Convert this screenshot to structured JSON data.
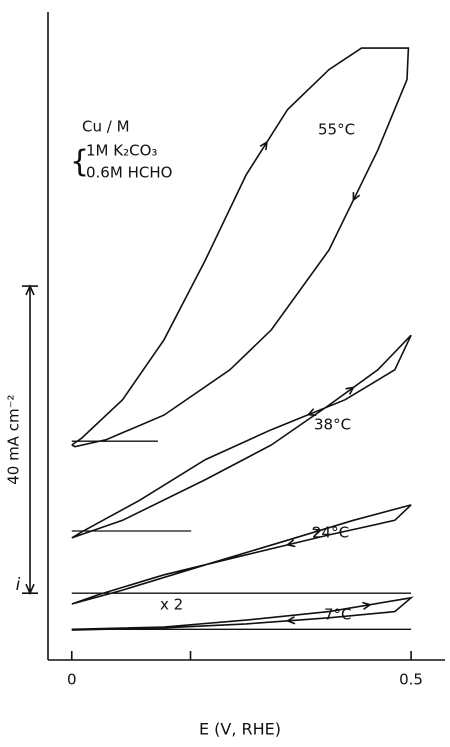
{
  "chart_data": {
    "type": "line",
    "xlabel": "E (V, RHE)",
    "ylabel": "i",
    "annotations": [
      "Cu / M",
      "1M K₂CO₃",
      "0.6M HCHO",
      "x 2"
    ],
    "scale_bar": {
      "value": 40,
      "label": "40 mA cm⁻²",
      "start": 8.7
    },
    "xlim": [
      -0.035,
      0.55
    ],
    "xticks": [
      0,
      {
        "value": 0.175,
        "label": null
      },
      {
        "value": 0.5,
        "label": "0.5"
      }
    ],
    "ylim": [
      0,
      84.4
    ],
    "series": [
      {
        "name": "55°C",
        "color": "#111111",
        "baseline": 28.5,
        "baseline_end": 0.127,
        "x": [
          0,
          0.0146,
          0.075,
          0.136,
          0.197,
          0.257,
          0.318,
          0.379,
          0.427,
          0.496,
          0.494,
          0.451,
          0.379,
          0.294,
          0.233,
          0.136,
          0.051,
          0.005,
          0
        ],
        "y": [
          28.0,
          28.9,
          33.9,
          41.7,
          52.1,
          63.2,
          71.7,
          76.9,
          79.7,
          79.7,
          75.6,
          66.4,
          53.4,
          43.0,
          37.8,
          31.9,
          28.7,
          27.8,
          28.0
        ]
      },
      {
        "name": "38°C",
        "color": "#111111",
        "baseline": 16.8,
        "baseline_end": 0.176,
        "x": [
          0,
          0.075,
          0.197,
          0.294,
          0.379,
          0.451,
          0.5,
          0.476,
          0.403,
          0.294,
          0.197,
          0.1,
          0.015,
          0
        ],
        "y": [
          15.9,
          18.2,
          23.5,
          28.0,
          33.2,
          37.8,
          42.3,
          37.8,
          33.9,
          30.0,
          26.1,
          20.8,
          16.7,
          15.9
        ]
      },
      {
        "name": "24°C",
        "color": "#111111",
        "baseline": 8.7,
        "baseline_end": 0.5,
        "x": [
          0,
          0.075,
          0.197,
          0.318,
          0.415,
          0.5,
          0.476,
          0.379,
          0.257,
          0.136,
          0.039,
          0
        ],
        "y": [
          7.3,
          9.1,
          12.4,
          15.6,
          18.2,
          20.2,
          18.2,
          16.3,
          13.7,
          11.1,
          8.5,
          7.3
        ]
      },
      {
        "name": "7°C",
        "color": "#111111",
        "baseline": 4.0,
        "baseline_end": 0.5,
        "x": [
          0,
          0.136,
          0.257,
          0.379,
          0.5,
          0.476,
          0.379,
          0.257,
          0.136,
          0
        ],
        "y": [
          4.0,
          4.3,
          5.2,
          6.3,
          8.1,
          6.3,
          5.5,
          4.7,
          4.2,
          3.9
        ]
      }
    ]
  }
}
